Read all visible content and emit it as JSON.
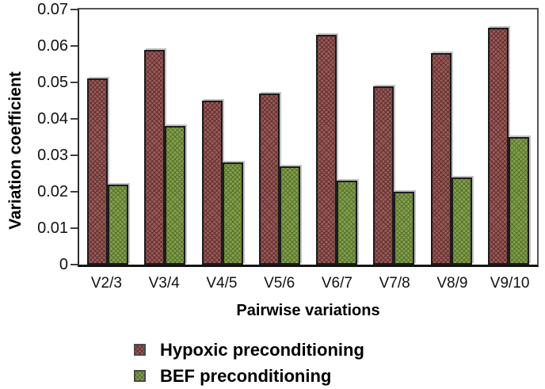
{
  "figure_title": "",
  "colors": {
    "hypoxic_fill": "#9a5b59",
    "hypoxic_hatch": "#5f2f2d",
    "bef_fill": "#84a04b",
    "bef_hatch": "#556f2d",
    "bar_border": "#1c1c1c",
    "axis": "#2e2e2e",
    "frame": "#555555",
    "text": "#000000"
  },
  "legend": {
    "items": [
      {
        "label": "Hypoxic preconditioning",
        "color": "#9a5b59"
      },
      {
        "label": "BEF preconditioning",
        "color": "#84a04b"
      }
    ]
  },
  "chart_data": {
    "type": "bar",
    "title": "",
    "xlabel": "Pairwise variations",
    "ylabel": "Variation coefficient",
    "categories": [
      "V2/3",
      "V3/4",
      "V4/5",
      "V5/6",
      "V6/7",
      "V7/8",
      "V8/9",
      "V9/10"
    ],
    "series": [
      {
        "name": "Hypoxic preconditioning",
        "color": "#9a5b59",
        "values": [
          0.051,
          0.059,
          0.045,
          0.047,
          0.063,
          0.049,
          0.058,
          0.065
        ]
      },
      {
        "name": "BEF preconditioning",
        "color": "#84a04b",
        "values": [
          0.022,
          0.038,
          0.028,
          0.027,
          0.023,
          0.02,
          0.024,
          0.035
        ]
      }
    ],
    "ylim": [
      0,
      0.07
    ],
    "ytick_step": 0.01,
    "yticks": [
      "0.07",
      "0.06",
      "0.05",
      "0.04",
      "0.03",
      "0.02",
      "0.01",
      "0"
    ],
    "grid": false,
    "bar_texture": "crosshatch",
    "legend_position": "bottom-left"
  }
}
